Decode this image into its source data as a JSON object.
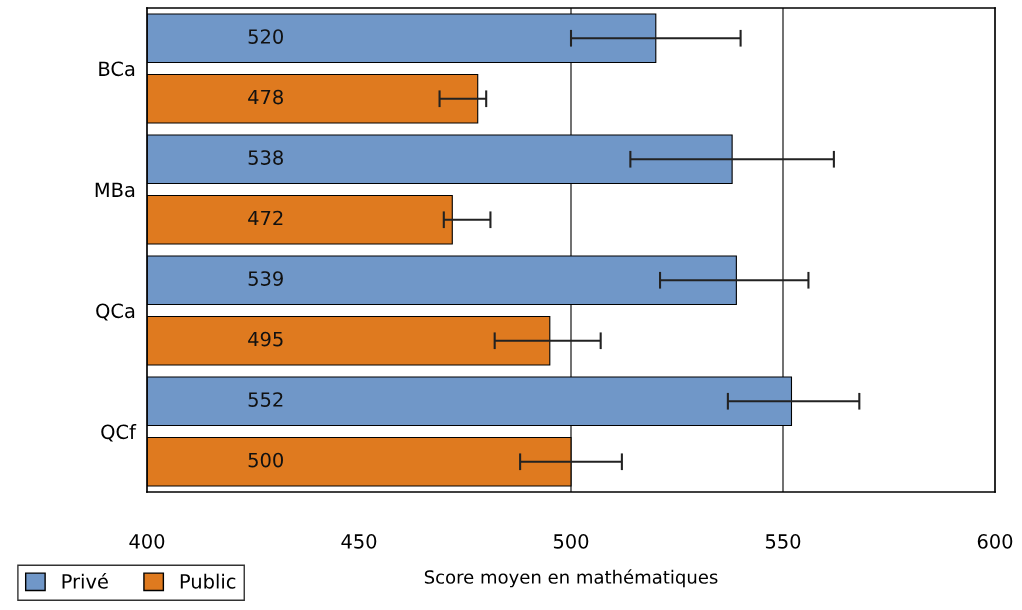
{
  "chart_data": {
    "type": "bar",
    "orientation": "horizontal",
    "xlabel": "Score moyen en mathématiques",
    "categories": [
      "BCa",
      "MBa",
      "QCa",
      "QCf"
    ],
    "series": [
      {
        "name": "Privé",
        "color": "#7097c8",
        "values": [
          520,
          538,
          539,
          552
        ],
        "errors": [
          [
            500,
            540
          ],
          [
            514,
            562
          ],
          [
            521,
            556
          ],
          [
            537,
            568
          ]
        ]
      },
      {
        "name": "Public",
        "color": "#df7a1f",
        "values": [
          478,
          472,
          495,
          500
        ],
        "errors": [
          [
            469,
            480
          ],
          [
            470,
            481
          ],
          [
            482,
            507
          ],
          [
            488,
            512
          ]
        ]
      }
    ],
    "xlim": [
      400,
      600
    ],
    "xticks": [
      400,
      450,
      500,
      550,
      600
    ],
    "ref_lines": [
      {
        "axis": "x",
        "value": 500,
        "color": "#000000"
      },
      {
        "axis": "x",
        "value": 550,
        "color": "#000000"
      }
    ],
    "data_labels": true,
    "legend": "bottom left",
    "grid": false
  }
}
